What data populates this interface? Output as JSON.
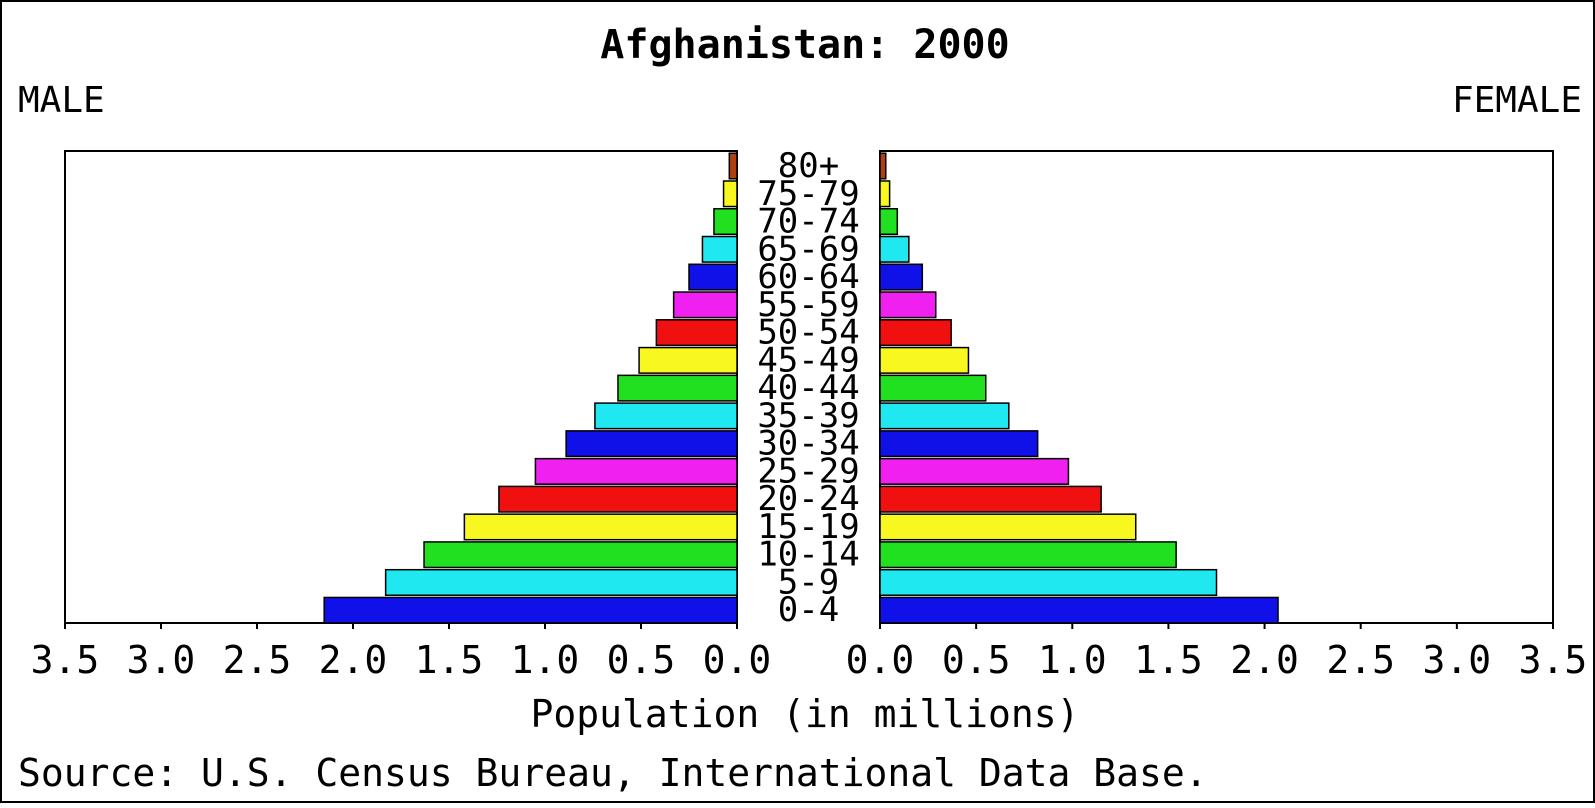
{
  "chart_data": {
    "type": "bar",
    "title": "Afghanistan: 2000",
    "left_label": "MALE",
    "right_label": "FEMALE",
    "xlabel": "Population (in millions)",
    "source": "Source: U.S. Census Bureau, International Data Base.",
    "xlim": [
      0,
      3.5
    ],
    "x_ticks": [
      "3.5",
      "3.0",
      "2.5",
      "2.0",
      "1.5",
      "1.0",
      "0.5",
      "0.0"
    ],
    "x_ticks_right": [
      "0.0",
      "0.5",
      "1.0",
      "1.5",
      "2.0",
      "2.5",
      "3.0",
      "3.5"
    ],
    "x_tick_values": [
      3.5,
      3.0,
      2.5,
      2.0,
      1.5,
      1.0,
      0.5,
      0.0
    ],
    "x_tick_values_right": [
      0.0,
      0.5,
      1.0,
      1.5,
      2.0,
      2.5,
      3.0,
      3.5
    ],
    "categories": [
      "0-4",
      "5-9",
      "10-14",
      "15-19",
      "20-24",
      "25-29",
      "30-34",
      "35-39",
      "40-44",
      "45-49",
      "50-54",
      "55-59",
      "60-64",
      "65-69",
      "70-74",
      "75-79",
      "80+"
    ],
    "series": [
      {
        "name": "MALE",
        "values": [
          2.15,
          1.83,
          1.63,
          1.42,
          1.24,
          1.05,
          0.89,
          0.74,
          0.62,
          0.51,
          0.42,
          0.33,
          0.25,
          0.18,
          0.12,
          0.07,
          0.04
        ]
      },
      {
        "name": "FEMALE",
        "values": [
          2.07,
          1.75,
          1.54,
          1.33,
          1.15,
          0.98,
          0.82,
          0.67,
          0.55,
          0.46,
          0.37,
          0.29,
          0.22,
          0.15,
          0.09,
          0.05,
          0.03
        ]
      }
    ],
    "bar_colors": [
      "#1010e8",
      "#20e8f0",
      "#20e020",
      "#f8f820",
      "#f01010",
      "#f020f0",
      "#1010e8",
      "#20e8f0",
      "#20e020",
      "#f8f820",
      "#f01010",
      "#f020f0",
      "#1010e8",
      "#20e8f0",
      "#20e020",
      "#f8f820",
      "#b04010"
    ],
    "grid": false
  }
}
